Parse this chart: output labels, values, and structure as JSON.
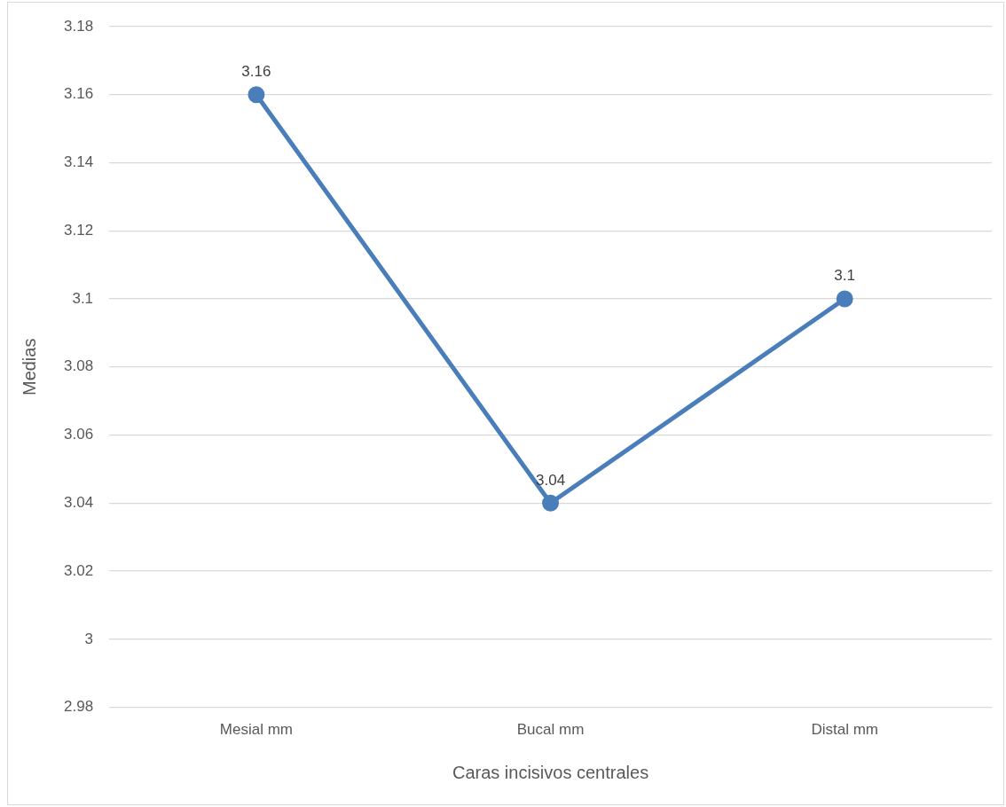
{
  "chart_data": {
    "type": "line",
    "xlabel": "Caras incisivos centrales",
    "ylabel": "Medias",
    "categories": [
      "Mesial mm",
      "Bucal mm",
      "Distal mm"
    ],
    "series": [
      {
        "color": "#4a7ebb",
        "values": [
          3.16,
          3.04,
          3.1
        ]
      }
    ],
    "ylim": [
      2.98,
      3.18
    ],
    "yticks": [
      2.98,
      3,
      3.02,
      3.04,
      3.06,
      3.08,
      3.1,
      3.12,
      3.14,
      3.16,
      3.18
    ],
    "grid": "y",
    "legend": false,
    "marker": "circle",
    "line_style": "solid",
    "data_labels": true
  }
}
